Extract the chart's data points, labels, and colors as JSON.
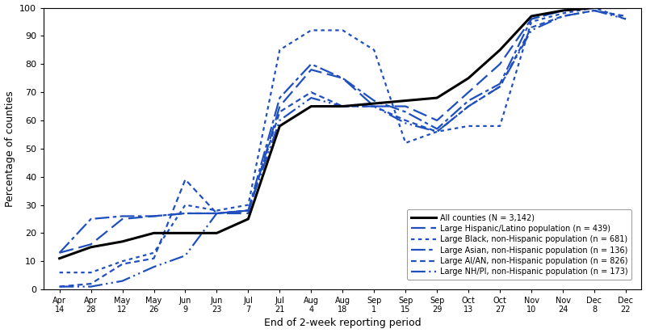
{
  "x_labels": [
    "Apr\n14",
    "Apr\n28",
    "May\n12",
    "May\n26",
    "Jun\n9",
    "Jun\n23",
    "Jul\n7",
    "Jul\n21",
    "Aug\n4",
    "Aug\n18",
    "Sep\n1",
    "Sep\n15",
    "Sep\n29",
    "Oct\n13",
    "Oct\n27",
    "Nov\n10",
    "Nov\n24",
    "Dec\n8",
    "Dec\n22"
  ],
  "x_indices": [
    0,
    1,
    2,
    3,
    4,
    5,
    6,
    7,
    8,
    9,
    10,
    11,
    12,
    13,
    14,
    15,
    16,
    17,
    18
  ],
  "all_counties": [
    11,
    15,
    17,
    20,
    20,
    20,
    25,
    58,
    65,
    65,
    66,
    67,
    68,
    75,
    85,
    97,
    99,
    100,
    100
  ],
  "hispanic": [
    13,
    16,
    25,
    26,
    27,
    27,
    27,
    65,
    78,
    75,
    65,
    65,
    60,
    70,
    80,
    96,
    99,
    100,
    100
  ],
  "black": [
    6,
    6,
    10,
    13,
    30,
    28,
    30,
    85,
    92,
    92,
    85,
    52,
    56,
    58,
    58,
    95,
    98,
    100,
    96
  ],
  "asian": [
    13,
    25,
    26,
    26,
    27,
    27,
    28,
    68,
    80,
    75,
    67,
    63,
    57,
    67,
    73,
    96,
    99,
    100,
    100
  ],
  "aian": [
    1,
    2,
    9,
    11,
    39,
    27,
    28,
    63,
    70,
    65,
    65,
    60,
    56,
    65,
    72,
    93,
    97,
    99,
    97
  ],
  "nhpi": [
    1,
    1,
    3,
    8,
    12,
    27,
    28,
    60,
    68,
    65,
    65,
    59,
    56,
    65,
    72,
    92,
    97,
    99,
    96
  ],
  "color_blue": "#1F4FBF",
  "color_black": "#000000",
  "ylabel": "Percentage of counties",
  "xlabel": "End of 2-week reporting period",
  "ylim": [
    0,
    100
  ],
  "yticks": [
    0,
    10,
    20,
    30,
    40,
    50,
    60,
    70,
    80,
    90,
    100
  ],
  "legend_entries": [
    "All counties (N = 3,142)",
    "Large Hispanic/Latino population (n = 439)",
    "Large Black, non-Hispanic population (n = 681)",
    "Large Asian, non-Hispanic population (n = 136)",
    "Large AI/AN, non-Hispanic population (n = 826)",
    "Large NH/PI, non-Hispanic population (n = 173)"
  ]
}
